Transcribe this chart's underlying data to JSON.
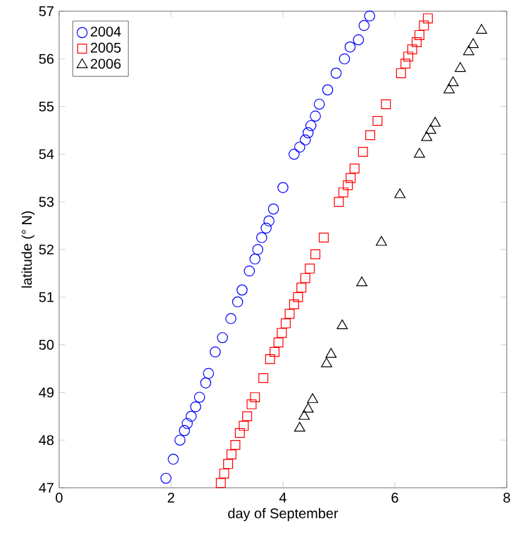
{
  "chart_data": {
    "type": "scatter",
    "xlabel": "day of September",
    "ylabel": "latitude (° N)",
    "xlim": [
      0,
      8
    ],
    "ylim": [
      47,
      57
    ],
    "xticks": [
      0,
      2,
      4,
      6,
      8
    ],
    "yticks": [
      47,
      48,
      49,
      50,
      51,
      52,
      53,
      54,
      55,
      56,
      57
    ],
    "grid": false,
    "legend": "top left",
    "series": [
      {
        "name": "2004",
        "color": "#0000ff",
        "marker": "circle",
        "x": [
          1.91,
          2.04,
          2.16,
          2.24,
          2.29,
          2.36,
          2.44,
          2.51,
          2.62,
          2.67,
          2.79,
          2.92,
          3.07,
          3.19,
          3.27,
          3.4,
          3.5,
          3.55,
          3.62,
          3.7,
          3.75,
          3.83,
          4.0,
          4.2,
          4.3,
          4.4,
          4.45,
          4.5,
          4.58,
          4.65,
          4.8,
          4.95,
          5.1,
          5.2,
          5.35,
          5.45,
          5.55
        ],
        "values": [
          47.2,
          47.6,
          48.0,
          48.2,
          48.35,
          48.5,
          48.7,
          48.9,
          49.2,
          49.4,
          49.85,
          50.15,
          50.55,
          50.9,
          51.15,
          51.55,
          51.8,
          52.0,
          52.25,
          52.45,
          52.6,
          52.85,
          53.3,
          54.0,
          54.15,
          54.3,
          54.45,
          54.6,
          54.8,
          55.05,
          55.35,
          55.7,
          56.0,
          56.25,
          56.4,
          56.7,
          56.9
        ]
      },
      {
        "name": "2005",
        "color": "#ff0000",
        "marker": "square",
        "x": [
          2.89,
          2.95,
          3.02,
          3.08,
          3.15,
          3.23,
          3.3,
          3.36,
          3.44,
          3.5,
          3.65,
          3.77,
          3.85,
          3.92,
          3.98,
          4.05,
          4.12,
          4.2,
          4.27,
          4.33,
          4.4,
          4.48,
          4.58,
          4.73,
          5.0,
          5.08,
          5.16,
          5.21,
          5.28,
          5.43,
          5.56,
          5.69,
          5.84,
          6.11,
          6.19,
          6.24,
          6.31,
          6.39,
          6.44,
          6.52,
          6.59
        ],
        "values": [
          47.1,
          47.3,
          47.5,
          47.7,
          47.9,
          48.15,
          48.3,
          48.5,
          48.75,
          48.9,
          49.3,
          49.7,
          49.85,
          50.05,
          50.25,
          50.45,
          50.65,
          50.85,
          51.0,
          51.2,
          51.4,
          51.6,
          51.9,
          52.25,
          53.0,
          53.2,
          53.35,
          53.5,
          53.7,
          54.05,
          54.4,
          54.7,
          55.05,
          55.7,
          55.9,
          56.05,
          56.2,
          56.35,
          56.5,
          56.7,
          56.85
        ]
      },
      {
        "name": "2006",
        "color": "#000000",
        "marker": "triangle",
        "x": [
          4.3,
          4.38,
          4.45,
          4.53,
          4.78,
          4.86,
          5.06,
          5.41,
          5.76,
          6.09,
          6.44,
          6.57,
          6.64,
          6.72,
          6.97,
          7.04,
          7.17,
          7.32,
          7.4,
          7.55
        ],
        "values": [
          48.25,
          48.5,
          48.65,
          48.85,
          49.6,
          49.8,
          50.4,
          51.3,
          52.15,
          53.15,
          54.0,
          54.35,
          54.5,
          54.65,
          55.35,
          55.5,
          55.8,
          56.15,
          56.3,
          56.6
        ]
      }
    ]
  }
}
